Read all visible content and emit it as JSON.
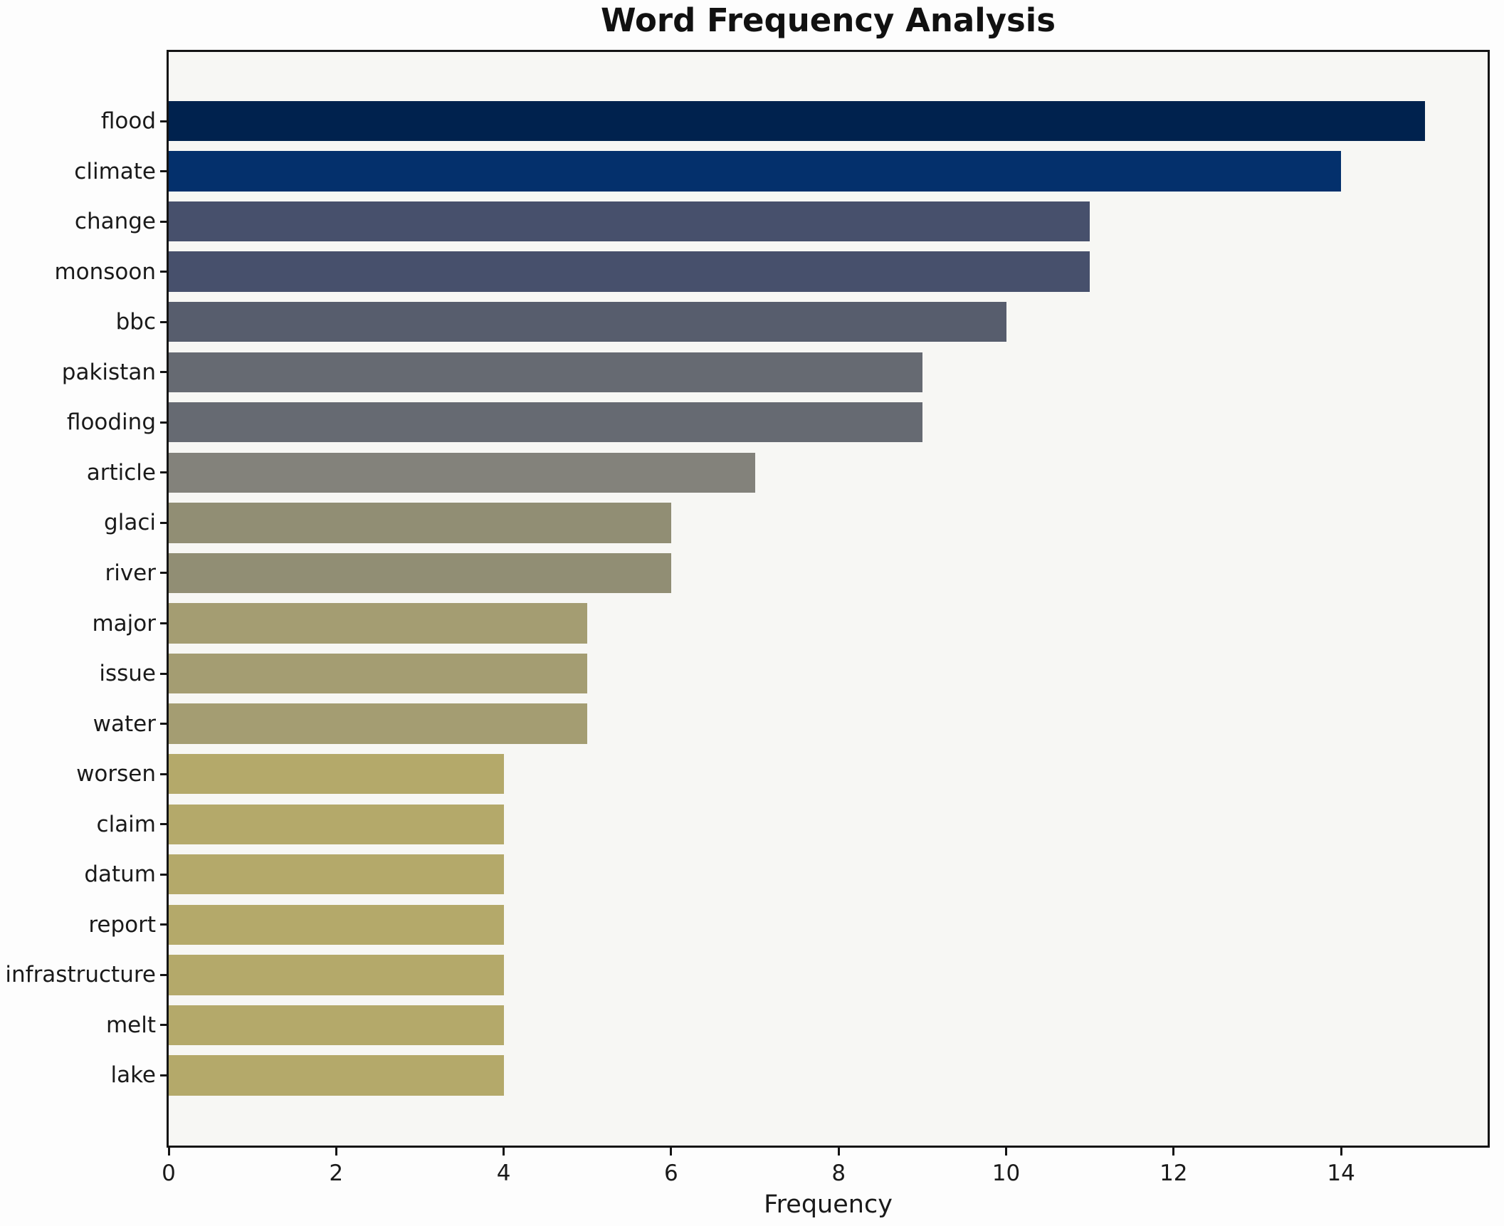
{
  "title": "Word Frequency Analysis",
  "chart_data": {
    "type": "bar",
    "orientation": "horizontal",
    "title": "Word Frequency Analysis",
    "xlabel": "Frequency",
    "ylabel": "",
    "categories": [
      "flood",
      "climate",
      "change",
      "monsoon",
      "bbc",
      "pakistan",
      "flooding",
      "article",
      "glaci",
      "river",
      "major",
      "issue",
      "water",
      "worsen",
      "claim",
      "datum",
      "report",
      "infrastructure",
      "melt",
      "lake"
    ],
    "values": [
      15,
      14,
      11,
      11,
      10,
      9,
      9,
      7,
      6,
      6,
      5,
      5,
      5,
      4,
      4,
      4,
      4,
      4,
      4,
      4
    ],
    "bar_colors": [
      "#00224e",
      "#04306c",
      "#47506c",
      "#47506c",
      "#575d6d",
      "#666a72",
      "#666a72",
      "#83827b",
      "#918e74",
      "#918e74",
      "#a49d72",
      "#a49d72",
      "#a49d72",
      "#b4a96a",
      "#b4a96a",
      "#b4a96a",
      "#b4a96a",
      "#b4a96a",
      "#b4a96a",
      "#b4a96a"
    ],
    "colormap": "cividis",
    "xlim": [
      0,
      15.75
    ],
    "xticks": [
      0,
      2,
      4,
      6,
      8,
      10,
      12,
      14
    ],
    "grid": false,
    "legend": null,
    "plot_bg": "#f7f7f4",
    "figure_bg": "#fdfdfd",
    "spine_color": "#141414",
    "text_color": "#1a1a1a"
  }
}
